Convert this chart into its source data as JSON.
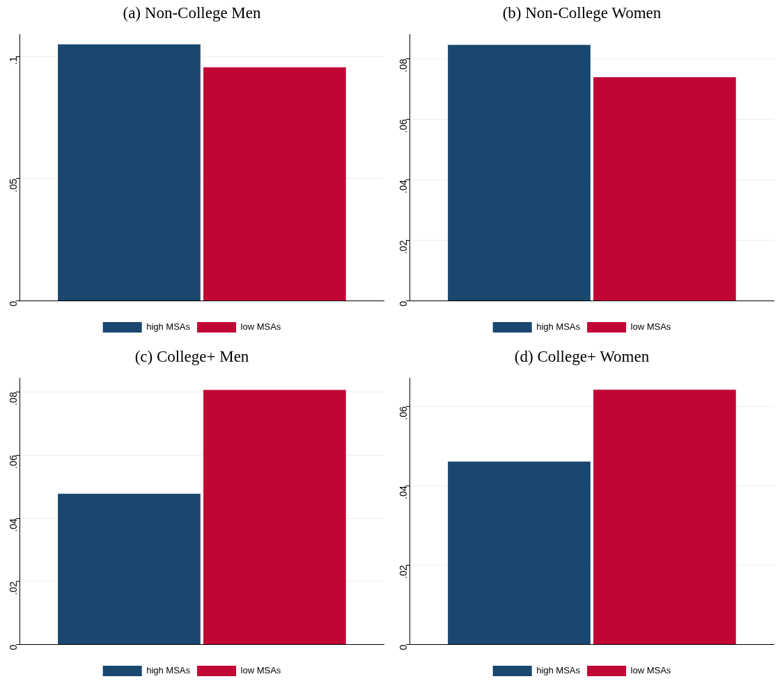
{
  "chart_data": [
    {
      "type": "bar",
      "title": "(a) Non-College Men",
      "categories": [
        null
      ],
      "series": [
        {
          "name": "high MSAs",
          "color": "#1a476f",
          "values": [
            0.105
          ]
        },
        {
          "name": "low MSAs",
          "color": "#c10534",
          "values": [
            0.0956
          ]
        }
      ],
      "ylim": [
        0,
        0.109
      ],
      "yticks": [
        {
          "value": 0,
          "label": "0"
        },
        {
          "value": 0.05,
          "label": ".05"
        },
        {
          "value": 0.1,
          "label": ".1"
        }
      ],
      "grid": "y",
      "legend": "bottom"
    },
    {
      "type": "bar",
      "title": "(b) Non-College Women",
      "categories": [
        null
      ],
      "series": [
        {
          "name": "high MSAs",
          "color": "#1a476f",
          "values": [
            0.0846
          ]
        },
        {
          "name": "low MSAs",
          "color": "#c10534",
          "values": [
            0.0739
          ]
        }
      ],
      "ylim": [
        0,
        0.088
      ],
      "yticks": [
        {
          "value": 0,
          "label": "0"
        },
        {
          "value": 0.02,
          "label": ".02"
        },
        {
          "value": 0.04,
          "label": ".04"
        },
        {
          "value": 0.06,
          "label": ".06"
        },
        {
          "value": 0.08,
          "label": ".08"
        }
      ],
      "grid": "y",
      "legend": "bottom"
    },
    {
      "type": "bar",
      "title": "(c) College+ Men",
      "categories": [
        null
      ],
      "series": [
        {
          "name": "high MSAs",
          "color": "#1a476f",
          "values": [
            0.0478
          ]
        },
        {
          "name": "low MSAs",
          "color": "#c10534",
          "values": [
            0.0807
          ]
        }
      ],
      "ylim": [
        0,
        0.0844
      ],
      "yticks": [
        {
          "value": 0,
          "label": "0"
        },
        {
          "value": 0.02,
          "label": ".02"
        },
        {
          "value": 0.04,
          "label": ".04"
        },
        {
          "value": 0.06,
          "label": ".06"
        },
        {
          "value": 0.08,
          "label": ".08"
        }
      ],
      "grid": "y",
      "legend": "bottom"
    },
    {
      "type": "bar",
      "title": "(d) College+ Women",
      "categories": [
        null
      ],
      "series": [
        {
          "name": "high MSAs",
          "color": "#1a476f",
          "values": [
            0.0461
          ]
        },
        {
          "name": "low MSAs",
          "color": "#c10534",
          "values": [
            0.0642
          ]
        }
      ],
      "ylim": [
        0,
        0.0671
      ],
      "yticks": [
        {
          "value": 0,
          "label": "0"
        },
        {
          "value": 0.02,
          "label": ".02"
        },
        {
          "value": 0.04,
          "label": ".04"
        },
        {
          "value": 0.06,
          "label": ".06"
        }
      ],
      "grid": "y",
      "legend": "bottom"
    }
  ]
}
